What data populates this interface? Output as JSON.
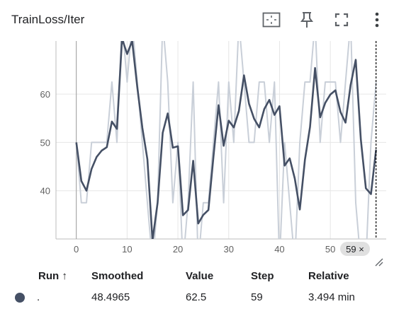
{
  "card": {
    "title": "TrainLoss/Iter",
    "icons": [
      "fit-domain-icon",
      "pin-icon",
      "fullscreen-icon",
      "more-vert-icon"
    ]
  },
  "chart_data": {
    "type": "line",
    "xlim": [
      -4,
      61
    ],
    "ylim": [
      30,
      71
    ],
    "x_ticks": [
      "0",
      "10",
      "20",
      "30",
      "40",
      "50"
    ],
    "y_ticks": [
      "40",
      "50",
      "60"
    ],
    "partial_y_ticks": [
      "70",
      "30"
    ],
    "grid": true,
    "series": [
      {
        "role": "raw",
        "color": "#c9cfd8",
        "x": [
          0,
          1,
          2,
          3,
          4,
          5,
          6,
          7,
          8,
          9,
          10,
          11,
          12,
          13,
          14,
          15,
          16,
          17,
          18,
          19,
          20,
          21,
          22,
          23,
          24,
          25,
          26,
          27,
          28,
          29,
          30,
          31,
          32,
          33,
          34,
          35,
          36,
          37,
          38,
          39,
          40,
          41,
          42,
          43,
          44,
          45,
          46,
          47,
          48,
          49,
          50,
          51,
          52,
          53,
          54,
          55,
          56,
          57,
          58,
          59
        ],
        "y": [
          50,
          37.5,
          37.5,
          50,
          50,
          50,
          50,
          62.5,
          50,
          75,
          62.5,
          75,
          62.5,
          50,
          37.5,
          25,
          37.5,
          75,
          62.5,
          37.5,
          50,
          25,
          37.5,
          62.5,
          25,
          37.5,
          37.5,
          50,
          62.5,
          37.5,
          62.5,
          50,
          75,
          62.5,
          50,
          50,
          62.5,
          62.5,
          50,
          62.5,
          25,
          50,
          37.5,
          25,
          50,
          62.5,
          62.5,
          75,
          50,
          62.5,
          62.5,
          62.5,
          50,
          62.5,
          75,
          37.5,
          25,
          25,
          50,
          62.5
        ]
      },
      {
        "role": "smoothed",
        "color": "#455065",
        "x": [
          0,
          1,
          2,
          3,
          4,
          5,
          6,
          7,
          8,
          9,
          10,
          11,
          12,
          13,
          14,
          15,
          16,
          17,
          18,
          19,
          20,
          21,
          22,
          23,
          24,
          25,
          26,
          27,
          28,
          29,
          30,
          31,
          32,
          33,
          34,
          35,
          36,
          37,
          38,
          39,
          40,
          41,
          42,
          43,
          44,
          45,
          46,
          47,
          48,
          49,
          50,
          51,
          52,
          53,
          54,
          55,
          56,
          57,
          58,
          59
        ],
        "y": [
          50,
          42,
          40,
          44.5,
          47,
          48.3,
          49,
          54.3,
          52.8,
          71.5,
          68.3,
          71,
          61.5,
          53,
          46.5,
          29.7,
          37.5,
          52,
          56,
          48.9,
          49.2,
          34.9,
          36,
          46.2,
          33.2,
          35,
          36,
          47,
          57.7,
          49.3,
          54.5,
          53.1,
          56.5,
          63.9,
          58,
          54.9,
          53.1,
          56.9,
          58.8,
          55.7,
          57.5,
          45.2,
          46.7,
          42.5,
          36.1,
          46.4,
          53.2,
          65.4,
          55.2,
          58.2,
          59.9,
          60.8,
          56.3,
          54.1,
          61.9,
          67.1,
          50.6,
          40.5,
          39.3,
          48.4965
        ]
      }
    ]
  },
  "hover": {
    "step_chip": "59 ×"
  },
  "table": {
    "headers": {
      "run": "Run ↑",
      "smoothed": "Smoothed",
      "value": "Value",
      "step": "Step",
      "relative": "Relative"
    },
    "row": {
      "run": ".",
      "smoothed": "48.4965",
      "value": "62.5",
      "step": "59",
      "relative": "3.494 min",
      "color": "#455065"
    }
  }
}
